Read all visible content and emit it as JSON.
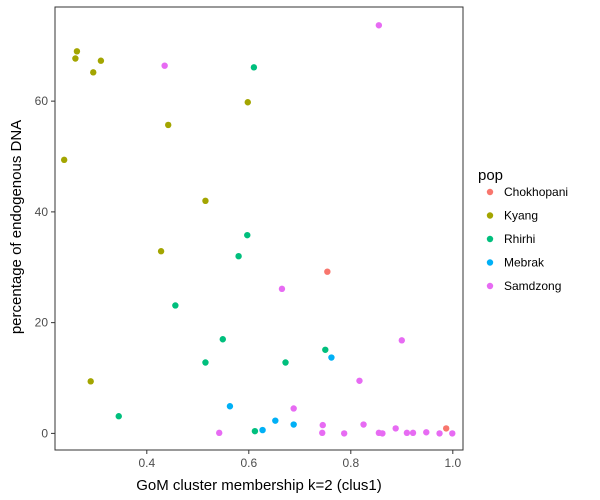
{
  "chart_data": {
    "type": "scatter",
    "title": "",
    "xlabel": "GoM cluster membership k=2 (clus1)",
    "ylabel": "percentage of endogenous DNA",
    "xlim": [
      0.22,
      1.02
    ],
    "ylim": [
      -3,
      77
    ],
    "x_ticks": [
      0.4,
      0.6,
      0.8,
      1.0
    ],
    "x_tick_labels": [
      "0.4",
      "0.6",
      "0.8",
      "1.0"
    ],
    "y_ticks": [
      0,
      20,
      40,
      60
    ],
    "y_tick_labels": [
      "0",
      "20",
      "40",
      "60"
    ],
    "grid": false,
    "legend": {
      "title": "pop",
      "position": "right"
    },
    "series": [
      {
        "name": "Chokhopani",
        "color": "#F8766D",
        "points": [
          {
            "x": 0.754,
            "y": 29.2
          },
          {
            "x": 0.987,
            "y": 0.9
          }
        ]
      },
      {
        "name": "Kyang",
        "color": "#A3A500",
        "points": [
          {
            "x": 0.263,
            "y": 69.0
          },
          {
            "x": 0.26,
            "y": 67.7
          },
          {
            "x": 0.31,
            "y": 67.3
          },
          {
            "x": 0.295,
            "y": 65.2
          },
          {
            "x": 0.598,
            "y": 59.8
          },
          {
            "x": 0.442,
            "y": 55.7
          },
          {
            "x": 0.238,
            "y": 49.4
          },
          {
            "x": 0.515,
            "y": 42.0
          },
          {
            "x": 0.428,
            "y": 32.9
          },
          {
            "x": 0.29,
            "y": 9.4
          }
        ]
      },
      {
        "name": "Rhirhi",
        "color": "#00BF7D",
        "points": [
          {
            "x": 0.61,
            "y": 66.1
          },
          {
            "x": 0.597,
            "y": 35.8
          },
          {
            "x": 0.58,
            "y": 32.0
          },
          {
            "x": 0.456,
            "y": 23.1
          },
          {
            "x": 0.549,
            "y": 17.0
          },
          {
            "x": 0.515,
            "y": 12.8
          },
          {
            "x": 0.672,
            "y": 12.8
          },
          {
            "x": 0.75,
            "y": 15.1
          },
          {
            "x": 0.345,
            "y": 3.1
          },
          {
            "x": 0.612,
            "y": 0.4
          }
        ]
      },
      {
        "name": "Mebrak",
        "color": "#00B0F6",
        "points": [
          {
            "x": 0.762,
            "y": 13.7
          },
          {
            "x": 0.563,
            "y": 4.9
          },
          {
            "x": 0.652,
            "y": 2.3
          },
          {
            "x": 0.688,
            "y": 1.6
          },
          {
            "x": 0.627,
            "y": 0.6
          }
        ]
      },
      {
        "name": "Samdzong",
        "color": "#E76BF3",
        "points": [
          {
            "x": 0.855,
            "y": 73.7
          },
          {
            "x": 0.435,
            "y": 66.4
          },
          {
            "x": 0.665,
            "y": 26.1
          },
          {
            "x": 0.9,
            "y": 16.8
          },
          {
            "x": 0.817,
            "y": 9.5
          },
          {
            "x": 0.688,
            "y": 4.5
          },
          {
            "x": 0.745,
            "y": 1.5
          },
          {
            "x": 0.825,
            "y": 1.6
          },
          {
            "x": 0.888,
            "y": 0.9
          },
          {
            "x": 0.542,
            "y": 0.1
          },
          {
            "x": 0.744,
            "y": 0.1
          },
          {
            "x": 0.787,
            "y": 0.0
          },
          {
            "x": 0.855,
            "y": 0.1
          },
          {
            "x": 0.862,
            "y": 0.0
          },
          {
            "x": 0.91,
            "y": 0.1
          },
          {
            "x": 0.922,
            "y": 0.1
          },
          {
            "x": 0.948,
            "y": 0.2
          },
          {
            "x": 0.974,
            "y": 0.0
          },
          {
            "x": 0.999,
            "y": 0.0
          }
        ]
      }
    ]
  }
}
